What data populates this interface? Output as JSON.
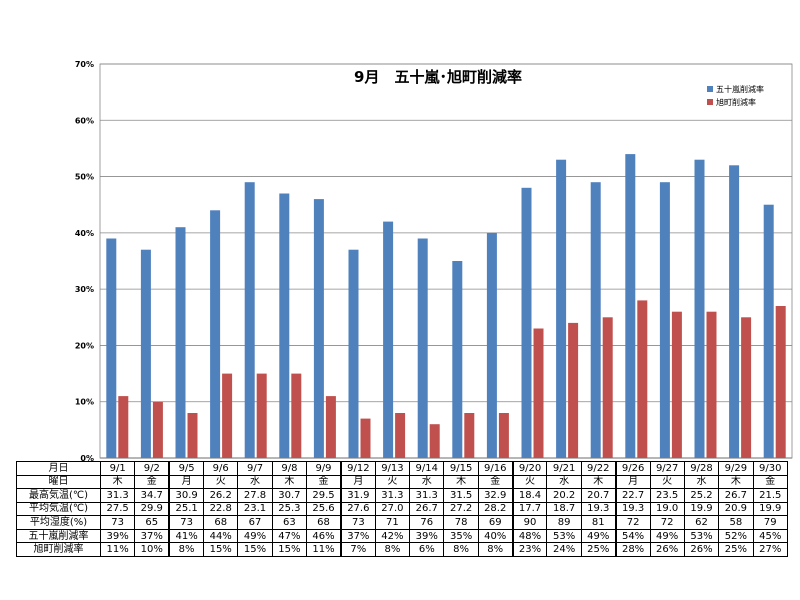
{
  "chart_data": {
    "type": "bar",
    "title": "9月　五十嵐･旭町削減率",
    "categories": [
      "9/1",
      "9/2",
      "9/5",
      "9/6",
      "9/7",
      "9/8",
      "9/9",
      "9/12",
      "9/13",
      "9/14",
      "9/15",
      "9/16",
      "9/20",
      "9/21",
      "9/22",
      "9/26",
      "9/27",
      "9/28",
      "9/29",
      "9/30"
    ],
    "series": [
      {
        "name": "五十嵐削減率",
        "color": "#4F81BD",
        "values": [
          39,
          37,
          41,
          44,
          49,
          47,
          46,
          37,
          42,
          39,
          35,
          40,
          48,
          53,
          49,
          54,
          49,
          53,
          52,
          45
        ]
      },
      {
        "name": "旭町削減率",
        "color": "#C0504D",
        "values": [
          11,
          10,
          8,
          15,
          15,
          15,
          11,
          7,
          8,
          6,
          8,
          8,
          23,
          24,
          25,
          28,
          26,
          26,
          25,
          27
        ]
      }
    ],
    "yticks": [
      "0%",
      "10%",
      "20%",
      "30%",
      "40%",
      "50%",
      "60%",
      "70%"
    ],
    "ylim": [
      0,
      70
    ],
    "grid": true,
    "legend_position": "top-right",
    "xlabel": "",
    "ylabel": ""
  },
  "table": {
    "rows": [
      {
        "label": "月日",
        "cells": [
          "9/1",
          "9/2",
          "9/5",
          "9/6",
          "9/7",
          "9/8",
          "9/9",
          "9/12",
          "9/13",
          "9/14",
          "9/15",
          "9/16",
          "9/20",
          "9/21",
          "9/22",
          "9/26",
          "9/27",
          "9/28",
          "9/29",
          "9/30"
        ]
      },
      {
        "label": "曜日",
        "cells": [
          "木",
          "金",
          "月",
          "火",
          "水",
          "木",
          "金",
          "月",
          "火",
          "水",
          "木",
          "金",
          "火",
          "水",
          "木",
          "月",
          "火",
          "水",
          "木",
          "金"
        ]
      },
      {
        "label": "最高気温(℃)",
        "cells": [
          "31.3",
          "34.7",
          "30.9",
          "26.2",
          "27.8",
          "30.7",
          "29.5",
          "31.9",
          "31.3",
          "31.3",
          "31.5",
          "32.9",
          "18.4",
          "20.2",
          "20.7",
          "22.7",
          "23.5",
          "25.2",
          "26.7",
          "21.5"
        ]
      },
      {
        "label": "平均気温(℃)",
        "cells": [
          "27.5",
          "29.9",
          "25.1",
          "22.8",
          "23.1",
          "25.3",
          "25.6",
          "27.6",
          "27.0",
          "26.7",
          "27.2",
          "28.2",
          "17.7",
          "18.7",
          "19.3",
          "19.3",
          "19.0",
          "19.9",
          "20.9",
          "19.9"
        ]
      },
      {
        "label": "平均湿度(%)",
        "cells": [
          "73",
          "65",
          "73",
          "68",
          "67",
          "63",
          "68",
          "73",
          "71",
          "76",
          "78",
          "69",
          "90",
          "89",
          "81",
          "72",
          "72",
          "62",
          "58",
          "79"
        ]
      },
      {
        "label": "五十嵐削減率",
        "cells": [
          "39%",
          "37%",
          "41%",
          "44%",
          "49%",
          "47%",
          "46%",
          "37%",
          "42%",
          "39%",
          "35%",
          "40%",
          "48%",
          "53%",
          "49%",
          "54%",
          "49%",
          "53%",
          "52%",
          "45%"
        ]
      },
      {
        "label": "旭町削減率",
        "cells": [
          "11%",
          "10%",
          "8%",
          "15%",
          "15%",
          "15%",
          "11%",
          "7%",
          "8%",
          "6%",
          "8%",
          "8%",
          "23%",
          "24%",
          "25%",
          "28%",
          "26%",
          "26%",
          "25%",
          "27%"
        ]
      }
    ],
    "week_starts": [
      2,
      7,
      12,
      15
    ]
  }
}
